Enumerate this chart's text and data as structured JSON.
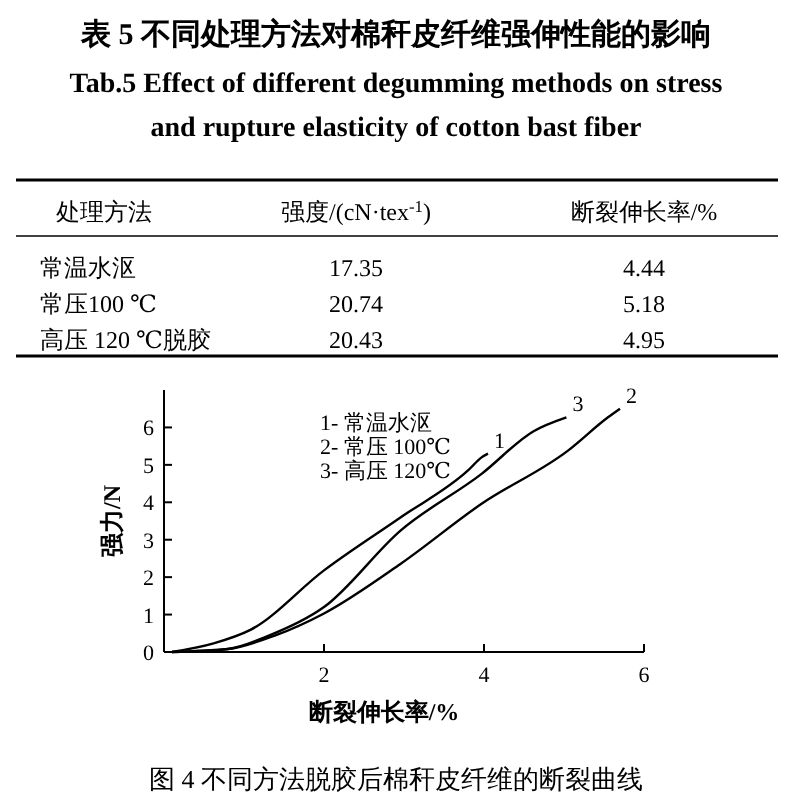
{
  "chart_data": [
    {
      "type": "other",
      "title": "表 5  不同处理方法对棉秆皮纤维强伸性能的影响",
      "subtitle": "Tab.5  Effect of different degumming methods on stress and rupture elasticity of cotton bast fiber",
      "xlabel": "处理方法",
      "categories": [
        "常温水沤",
        "常压100 ℃",
        "高压 120 ℃脱胶"
      ],
      "series": [
        {
          "name": "强度/(cN·tex$^{-1}$)",
          "values": [
            17.35,
            20.74,
            20.43
          ]
        },
        {
          "name": "断裂伸长率/%",
          "values": [
            4.44,
            5.18,
            4.95
          ]
        }
      ],
      "data_labels": true
    },
    {
      "type": "line",
      "xlabel": "断裂伸长率/%",
      "ylabel": "强力/N",
      "xlim": [
        0,
        6
      ],
      "ylim": [
        0,
        7
      ],
      "xticks": [
        2,
        4,
        6
      ],
      "yticks": [
        0,
        1,
        2,
        3,
        4,
        5,
        6
      ],
      "grid": false,
      "marker": "none",
      "line_style": "solid",
      "series": [
        {
          "name": "1",
          "color": "#000000",
          "x": [
            0.1,
            0.62,
            1.08,
            2.0,
            2.96,
            3.8,
            3.97,
            4.05
          ],
          "values": [
            0,
            0.23,
            0.59,
            2.18,
            3.6,
            4.85,
            5.2,
            5.3
          ]
        },
        {
          "name": "2",
          "color": "#000000",
          "x": [
            0.1,
            0.8,
            1.4,
            2.0,
            2.96,
            3.97,
            5.05,
            5.55,
            5.7
          ],
          "values": [
            0,
            0.08,
            0.45,
            1.03,
            2.36,
            3.96,
            5.38,
            6.27,
            6.5
          ]
        },
        {
          "name": "3",
          "color": "#000000",
          "x": [
            0.1,
            0.8,
            1.28,
            2.0,
            2.96,
            3.97,
            4.62,
            5.03
          ],
          "values": [
            0,
            0.08,
            0.41,
            1.2,
            3.25,
            4.76,
            5.9,
            6.27
          ]
        }
      ],
      "annotations": [
        "1- 常温水沤",
        "2- 常压 100℃",
        "3- 高压 120℃",
        "图 4  不同方法脱胶后棉秆皮纤维的断裂曲线"
      ]
    }
  ]
}
